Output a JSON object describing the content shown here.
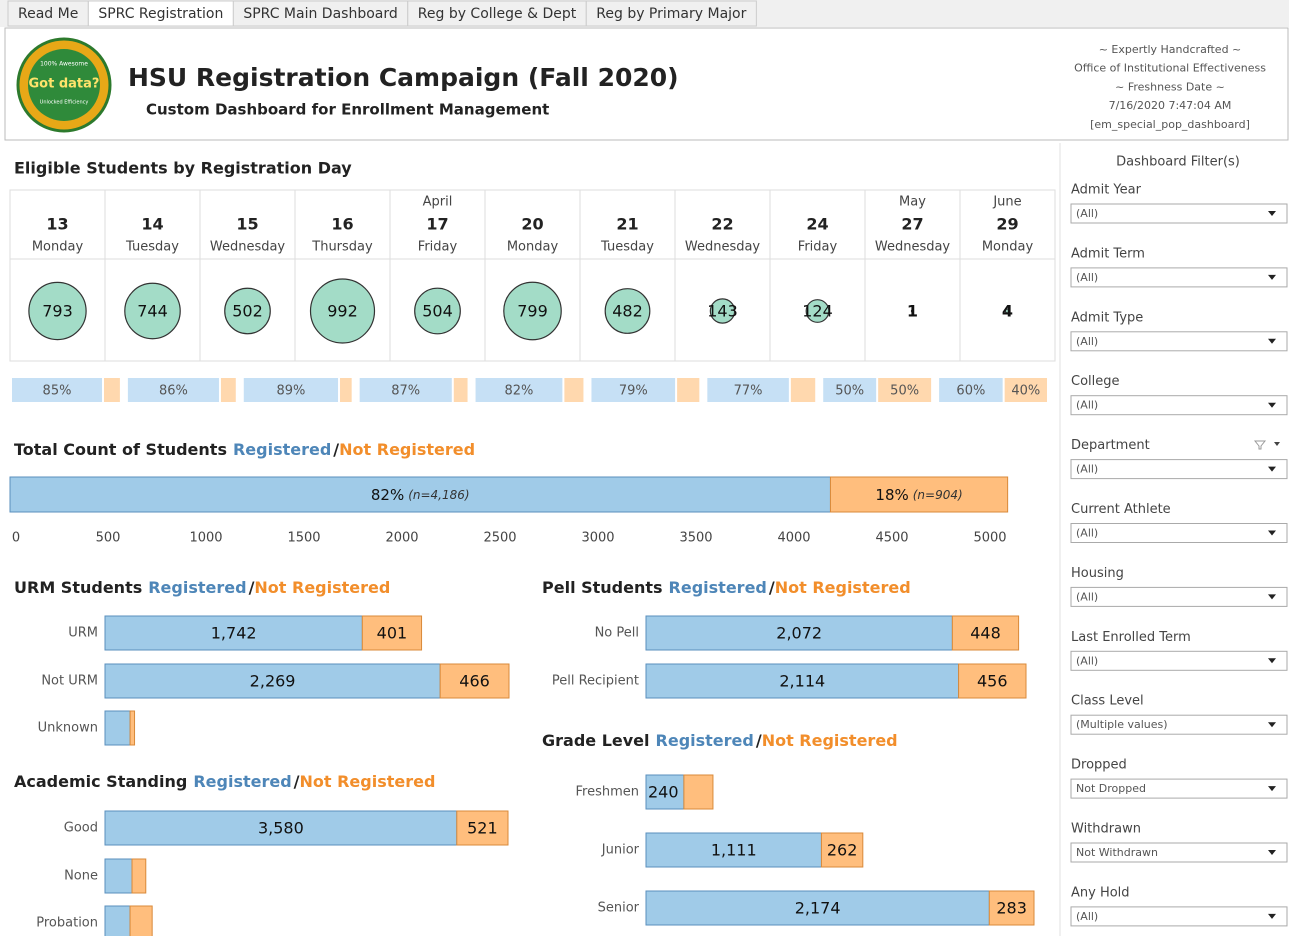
{
  "tabs": [
    "Read Me",
    "SPRC Registration",
    "SPRC Main Dashboard",
    "Reg by College & Dept",
    "Reg by Primary Major"
  ],
  "header": {
    "logo": [
      "100% Awesome",
      "Got data?",
      "Unlocked Efficiency"
    ],
    "title": "HSU Registration Campaign (Fall 2020)",
    "subtitle": "Custom Dashboard for Enrollment Management",
    "info": [
      "~ Expertly Handcrafted ~",
      "Office of Institutional Effectiveness",
      "~ Freshness Date ~",
      "7/16/2020 7:47:04 AM",
      "[em_special_pop_dashboard]"
    ]
  },
  "days": {
    "title": "Eligible Students by Registration Day",
    "columns": [
      {
        "date": 13,
        "weekday": "Monday",
        "count": 793
      },
      {
        "date": 14,
        "weekday": "Tuesday",
        "count": 744
      },
      {
        "date": 15,
        "weekday": "Wednesday",
        "count": 502
      },
      {
        "date": 16,
        "weekday": "Thursday",
        "count": 992
      },
      {
        "month": "April",
        "date": 17,
        "weekday": "Friday",
        "count": 504
      },
      {
        "date": 20,
        "weekday": "Monday",
        "count": 799
      },
      {
        "date": 21,
        "weekday": "Tuesday",
        "count": 482
      },
      {
        "date": 22,
        "weekday": "Wednesday",
        "count": 143
      },
      {
        "date": 24,
        "weekday": "Friday",
        "count": 124
      },
      {
        "month": "May",
        "date": 27,
        "weekday": "Wednesday",
        "count": 1
      },
      {
        "month": "June",
        "date": 29,
        "weekday": "Monday",
        "count": 4
      }
    ],
    "pct_bars": [
      {
        "values": [
          85,
          15
        ],
        "labels": [
          "85%",
          null
        ]
      },
      {
        "values": [
          86,
          14
        ],
        "labels": [
          "86%",
          null
        ]
      },
      {
        "values": [
          89,
          11
        ],
        "labels": [
          "89%",
          null
        ]
      },
      {
        "values": [
          87,
          13
        ],
        "labels": [
          "87%",
          null
        ]
      },
      {
        "values": [
          82,
          18
        ],
        "labels": [
          "82%",
          null
        ]
      },
      {
        "values": [
          79,
          21
        ],
        "labels": [
          "79%",
          null
        ]
      },
      {
        "values": [
          77,
          23
        ],
        "labels": [
          "77%",
          null
        ]
      },
      {
        "values": [
          50,
          50
        ],
        "labels": [
          "50%",
          "50%"
        ]
      },
      {
        "values": [
          60,
          40
        ],
        "labels": [
          "60%",
          "40%"
        ]
      }
    ]
  },
  "total": {
    "title": "Total Count of Students",
    "registered": "Registered",
    "separator": "/",
    "not_registered": "Not Registered",
    "counts": [
      4186,
      904
    ],
    "labels": [
      "82%",
      "18%"
    ],
    "count_labels": [
      "(n=4,186)",
      "(n=904)"
    ],
    "xlim": [
      0,
      5000
    ],
    "xticks": [
      0,
      500,
      1000,
      1500,
      2000,
      2500,
      3000,
      3500,
      4000,
      4500,
      5000
    ]
  },
  "groups": [
    {
      "title": "URM Students",
      "registered": "Registered",
      "separator": "/",
      "not_registered": "Not Registered",
      "categories": [
        "URM",
        "Not URM",
        "Unknown"
      ],
      "registered_values": [
        1742,
        2269,
        170
      ],
      "not_registered_values": [
        401,
        466,
        30
      ],
      "registered_labels": [
        "1,742",
        "2,269",
        null
      ],
      "not_registered_labels": [
        "401",
        "466",
        null
      ]
    },
    {
      "title": "Academic Standing",
      "registered": "Registered",
      "separator": "/",
      "not_registered": "Not Registered",
      "categories": [
        "Good",
        "None",
        "Probation"
      ],
      "registered_values": [
        3580,
        275,
        255
      ],
      "not_registered_values": [
        521,
        140,
        225
      ],
      "registered_labels": [
        "3,580",
        null,
        null
      ],
      "not_registered_labels": [
        "521",
        null,
        null
      ]
    },
    {
      "title": "Pell Students",
      "registered": "Registered",
      "separator": "/",
      "not_registered": "Not Registered",
      "categories": [
        "No Pell",
        "Pell Recipient"
      ],
      "registered_values": [
        2072,
        2114
      ],
      "not_registered_values": [
        448,
        456
      ],
      "registered_labels": [
        "2,072",
        "2,114"
      ],
      "not_registered_labels": [
        "448",
        "456"
      ]
    },
    {
      "title": "Grade Level",
      "registered": "Registered",
      "separator": "/",
      "not_registered": "Not Registered",
      "categories": [
        "Freshmen",
        "Junior",
        "Senior"
      ],
      "registered_values": [
        240,
        1111,
        2174
      ],
      "not_registered_values": [
        184,
        262,
        283
      ],
      "registered_labels": [
        "240",
        "1,111",
        "2,174"
      ],
      "not_registered_labels": [
        null,
        "262",
        "283"
      ]
    }
  ],
  "filters": {
    "title": "Dashboard Filter(s)",
    "items": [
      {
        "label": "Admit Year",
        "value": "(All)"
      },
      {
        "label": "Admit Term",
        "value": "(All)"
      },
      {
        "label": "Admit Type",
        "value": "(All)"
      },
      {
        "label": "College",
        "value": "(All)"
      },
      {
        "label": "Department",
        "value": "(All)"
      },
      {
        "label": "Current Athlete",
        "value": "(All)"
      },
      {
        "label": "Housing",
        "value": "(All)"
      },
      {
        "label": "Last Enrolled Term",
        "value": "(All)"
      },
      {
        "label": "Class Level",
        "value": "(Multiple values)"
      },
      {
        "label": "Dropped",
        "value": "Not Dropped"
      },
      {
        "label": "Withdrawn",
        "value": "Not Withdrawn"
      },
      {
        "label": "Any Hold",
        "value": "(All)"
      }
    ]
  }
}
